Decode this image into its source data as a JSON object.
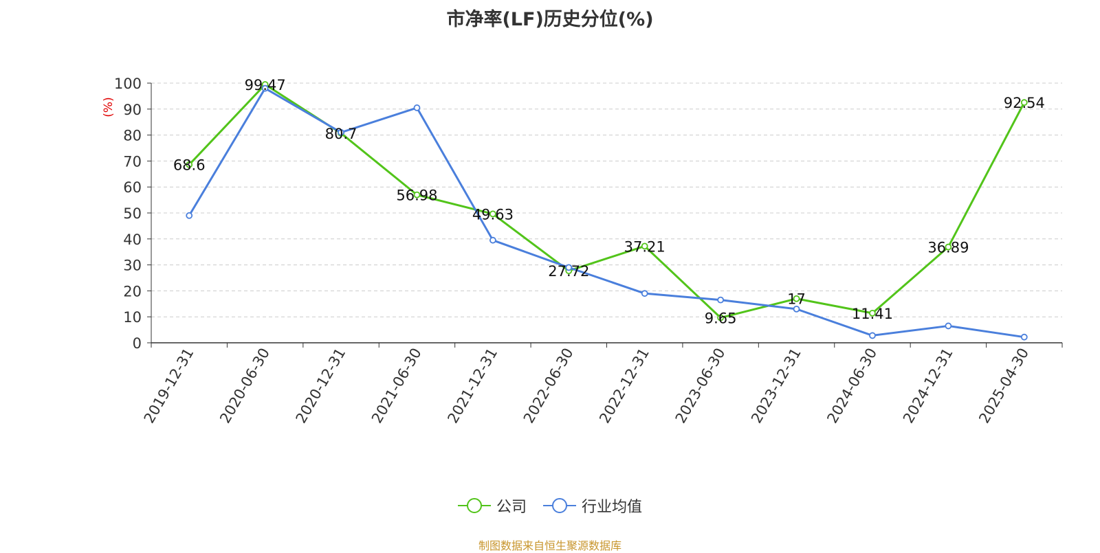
{
  "chart_data": {
    "type": "line",
    "title": "市净率(LF)历史分位(%)",
    "ylabel": "(%)",
    "xlabel": "",
    "categories": [
      "2019-12-31",
      "2020-06-30",
      "2020-12-31",
      "2021-06-30",
      "2021-12-31",
      "2022-06-30",
      "2022-12-31",
      "2023-06-30",
      "2023-12-31",
      "2024-06-30",
      "2024-12-31",
      "2025-04-30"
    ],
    "ylim": [
      0,
      100
    ],
    "yticks": [
      0,
      10,
      20,
      30,
      40,
      50,
      60,
      70,
      80,
      90,
      100
    ],
    "grid": true,
    "legend_position": "bottom",
    "series": [
      {
        "name": "公司",
        "color": "#52c41a",
        "values": [
          68.6,
          99.47,
          80.7,
          56.98,
          49.63,
          27.72,
          37.21,
          9.65,
          17,
          11.41,
          36.89,
          92.54
        ],
        "labels": [
          "68.6",
          "99.47",
          "80.7",
          "56.98",
          "49.63",
          "27.72",
          "37.21",
          "9.65",
          "17",
          "11.41",
          "36.89",
          "92.54"
        ]
      },
      {
        "name": "行业均值",
        "color": "#4a7fdc",
        "values": [
          49,
          98,
          81,
          90.5,
          39.5,
          29,
          19,
          16.5,
          13,
          2.8,
          6.5,
          2.2
        ]
      }
    ]
  },
  "footer": {
    "source": "制图数据来自恒生聚源数据库"
  }
}
